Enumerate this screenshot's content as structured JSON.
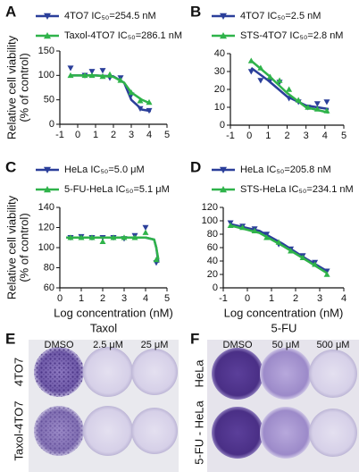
{
  "chart_data": [
    {
      "type": "line",
      "panel": "A",
      "y_label": [
        "Relative cell viability",
        "(% of control)"
      ],
      "xlim": [
        -1,
        5
      ],
      "xticks": [
        -1,
        0,
        1,
        2,
        3,
        4,
        5
      ],
      "ylim": [
        0,
        150
      ],
      "yticks": [
        0,
        50,
        100,
        150
      ],
      "series": [
        {
          "name": "4TO7 IC₅₀=254.5 nM",
          "color": "#2b3f9a",
          "marker": "triangle-down",
          "x": [
            -0.4,
            0.4,
            0.8,
            1.4,
            1.8,
            2.4,
            3,
            3.5,
            4
          ],
          "values": [
            115,
            100,
            108,
            110,
            95,
            95,
            60,
            32,
            28
          ],
          "fit_x": [
            -0.4,
            1,
            2,
            2.6,
            3,
            3.6,
            4.1
          ],
          "fit_values": [
            100,
            100,
            98,
            85,
            50,
            30,
            27
          ]
        },
        {
          "name": "Taxol-4TO7 IC₅₀=286.1 nM",
          "color": "#2fb34a",
          "marker": "triangle-up",
          "x": [
            -0.4,
            0.4,
            0.8,
            1.4,
            1.8,
            2.4,
            3,
            3.5,
            4
          ],
          "values": [
            100,
            100,
            100,
            98,
            102,
            90,
            65,
            48,
            45
          ],
          "fit_x": [
            -0.4,
            1,
            2,
            2.6,
            3,
            3.6,
            4.1
          ],
          "fit_values": [
            100,
            100,
            97,
            85,
            65,
            50,
            42
          ]
        }
      ]
    },
    {
      "type": "line",
      "panel": "B",
      "xlim": [
        -1,
        5
      ],
      "xticks": [
        -1,
        0,
        1,
        2,
        3,
        4,
        5
      ],
      "ylim": [
        0,
        40
      ],
      "yticks": [
        0,
        10,
        20,
        30,
        40
      ],
      "series": [
        {
          "name": "4TO7 IC₅₀=2.5 nM",
          "color": "#2b3f9a",
          "marker": "triangle-down",
          "x": [
            0.1,
            0.6,
            1.1,
            1.6,
            2.1,
            2.6,
            3.1,
            3.6,
            4.1
          ],
          "values": [
            30,
            25,
            25,
            24,
            15,
            13,
            10,
            12,
            13
          ],
          "fit_x": [
            0.1,
            1,
            2,
            3,
            4.2
          ],
          "fit_values": [
            32,
            25,
            16,
            11,
            9
          ]
        },
        {
          "name": "STS-4TO7 IC₅₀=2.8 nM",
          "color": "#2fb34a",
          "marker": "triangle-up",
          "x": [
            0.1,
            0.6,
            1.1,
            1.6,
            2.1,
            2.6,
            3.1,
            3.6,
            4.1
          ],
          "values": [
            36,
            32,
            27,
            25,
            20,
            14,
            10,
            9,
            8
          ],
          "fit_x": [
            0.1,
            1,
            2,
            3,
            4.2
          ],
          "fit_values": [
            36,
            28,
            18,
            10,
            7
          ]
        }
      ]
    },
    {
      "type": "line",
      "panel": "C",
      "y_label": [
        "Relative cell viability",
        "(% of control)"
      ],
      "x_label": "Log concentration (nM)",
      "xlim": [
        0,
        5
      ],
      "xticks": [
        0,
        1,
        2,
        3,
        4,
        5
      ],
      "ylim": [
        60,
        140
      ],
      "yticks": [
        60,
        80,
        100,
        120,
        140
      ],
      "series": [
        {
          "name": "HeLa IC₅₀=5.0 μM",
          "color": "#2b3f9a",
          "marker": "triangle-down",
          "x": [
            0.5,
            1,
            1.5,
            2,
            2.5,
            3,
            3.5,
            4,
            4.5
          ],
          "values": [
            110,
            111,
            110,
            110,
            110,
            109,
            112,
            120,
            85
          ],
          "fit_x": [
            0.3,
            1,
            2,
            3,
            4,
            4.4,
            4.5,
            4.6
          ],
          "fit_values": [
            110,
            110,
            110,
            110,
            110,
            108,
            100,
            85
          ]
        },
        {
          "name": "5-FU-HeLa IC₅₀=5.1 μM",
          "color": "#2fb34a",
          "marker": "triangle-up",
          "x": [
            0.5,
            1,
            1.5,
            2,
            2.5,
            3,
            3.5,
            4,
            4.5
          ],
          "values": [
            110,
            110,
            110,
            106,
            110,
            110,
            110,
            115,
            88
          ],
          "fit_x": [
            0.3,
            1,
            2,
            3,
            4,
            4.4,
            4.5,
            4.6
          ],
          "fit_values": [
            110,
            110,
            110,
            110,
            110,
            108,
            100,
            88
          ]
        }
      ]
    },
    {
      "type": "line",
      "panel": "D",
      "x_label": "Log concentration (nM)",
      "xlim": [
        -1,
        4
      ],
      "xticks": [
        -1,
        0,
        1,
        2,
        3,
        4
      ],
      "ylim": [
        0,
        120
      ],
      "yticks": [
        0,
        20,
        40,
        60,
        80,
        100,
        120
      ],
      "series": [
        {
          "name": "HeLa IC₅₀=205.8 nM",
          "color": "#2b3f9a",
          "marker": "triangle-down",
          "x": [
            -0.7,
            -0.2,
            0.3,
            0.8,
            1.3,
            1.8,
            2.3,
            2.8,
            3.3
          ],
          "values": [
            97,
            92,
            88,
            80,
            65,
            58,
            48,
            38,
            25
          ],
          "fit_x": [
            -0.7,
            0.5,
            1.5,
            2.5,
            3.3
          ],
          "fit_values": [
            95,
            85,
            65,
            42,
            25
          ]
        },
        {
          "name": "STS-HeLa IC₅₀=234.1 nM",
          "color": "#2fb34a",
          "marker": "triangle-up",
          "x": [
            -0.7,
            -0.2,
            0.3,
            0.8,
            1.3,
            1.8,
            2.3,
            2.8,
            3.3
          ],
          "values": [
            93,
            90,
            85,
            75,
            68,
            55,
            45,
            35,
            20
          ],
          "fit_x": [
            -0.7,
            0.5,
            1.5,
            2.5,
            3.3
          ],
          "fit_values": [
            93,
            82,
            62,
            40,
            22
          ]
        }
      ]
    }
  ],
  "photos": [
    {
      "panel": "E",
      "title": "Taxol",
      "columns": [
        "DMSO",
        "2.5 μM",
        "25 μM"
      ],
      "rows": [
        "4TO7",
        "Taxol-4TO7"
      ]
    },
    {
      "panel": "F",
      "title": "5-FU",
      "columns": [
        "DMSO",
        "50 μM",
        "500 μM"
      ],
      "rows": [
        "HeLa",
        "5-FU - HeLa"
      ]
    }
  ]
}
